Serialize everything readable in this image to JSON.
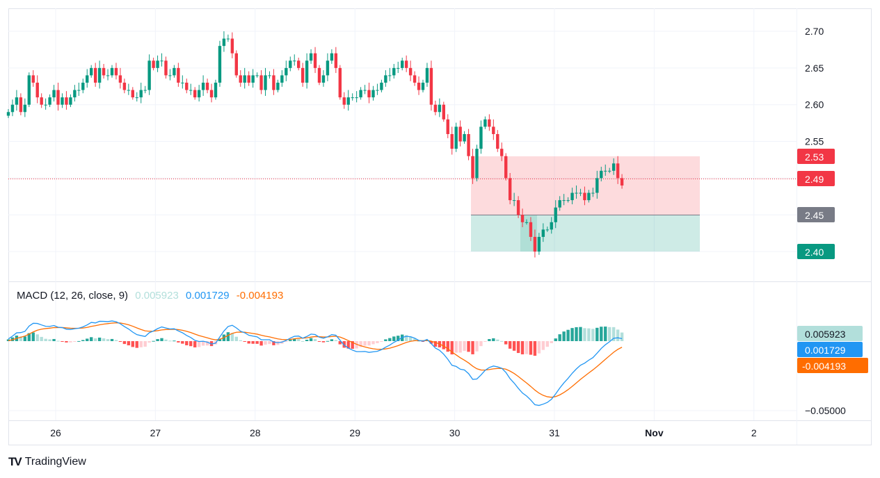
{
  "chart_data": {
    "type": "candlestick",
    "x_ticks": [
      "26",
      "27",
      "28",
      "29",
      "30",
      "31",
      "Nov",
      "2"
    ],
    "y_ticks": [
      "2.70",
      "2.65",
      "2.60",
      "2.55"
    ],
    "ylim": [
      2.37,
      2.72
    ],
    "interval": "1h",
    "close": [
      2.59,
      2.6,
      2.61,
      2.59,
      2.6,
      2.64,
      2.63,
      2.61,
      2.6,
      2.6,
      2.61,
      2.62,
      2.6,
      2.61,
      2.6,
      2.61,
      2.62,
      2.62,
      2.63,
      2.64,
      2.65,
      2.63,
      2.65,
      2.64,
      2.64,
      2.65,
      2.64,
      2.63,
      2.62,
      2.62,
      2.61,
      2.61,
      2.62,
      2.62,
      2.66,
      2.65,
      2.66,
      2.66,
      2.64,
      2.64,
      2.65,
      2.63,
      2.63,
      2.62,
      2.62,
      2.61,
      2.62,
      2.63,
      2.62,
      2.61,
      2.63,
      2.68,
      2.69,
      2.69,
      2.67,
      2.64,
      2.63,
      2.64,
      2.63,
      2.64,
      2.64,
      2.62,
      2.64,
      2.64,
      2.62,
      2.63,
      2.64,
      2.65,
      2.66,
      2.66,
      2.65,
      2.63,
      2.66,
      2.67,
      2.65,
      2.63,
      2.64,
      2.66,
      2.67,
      2.65,
      2.61,
      2.6,
      2.61,
      2.61,
      2.61,
      2.62,
      2.62,
      2.61,
      2.62,
      2.62,
      2.63,
      2.64,
      2.64,
      2.65,
      2.65,
      2.66,
      2.65,
      2.64,
      2.63,
      2.62,
      2.63,
      2.65,
      2.6,
      2.59,
      2.6,
      2.58,
      2.56,
      2.54,
      2.57,
      2.55,
      2.56,
      2.53,
      2.5,
      2.54,
      2.57,
      2.58,
      2.57,
      2.56,
      2.54,
      2.53,
      2.5,
      2.47,
      2.47,
      2.45,
      2.44,
      2.44,
      2.42,
      2.4,
      2.42,
      2.43,
      2.43,
      2.44,
      2.46,
      2.47,
      2.47,
      2.47,
      2.48,
      2.48,
      2.48,
      2.47,
      2.48,
      2.48,
      2.5,
      2.51,
      2.51,
      2.51,
      2.52,
      2.5,
      2.49
    ],
    "current_price": "2.49",
    "position": {
      "stop": "2.53",
      "entry": "2.45",
      "target": "2.40"
    },
    "colors": {
      "up": "#089981",
      "down": "#f23645",
      "macd": "#2962ff",
      "signal": "#ff6d00"
    }
  },
  "macd": {
    "label": "MACD (12, 26, close, 9)",
    "histogram": "0.005923",
    "macd": "0.001729",
    "signal": "-0.004193",
    "axis_tick": "−0.05000",
    "colors": {
      "histogram": "#b2dfdb",
      "macd": "#2196f3",
      "signal": "#ff6d00"
    }
  },
  "brand": "TradingView"
}
